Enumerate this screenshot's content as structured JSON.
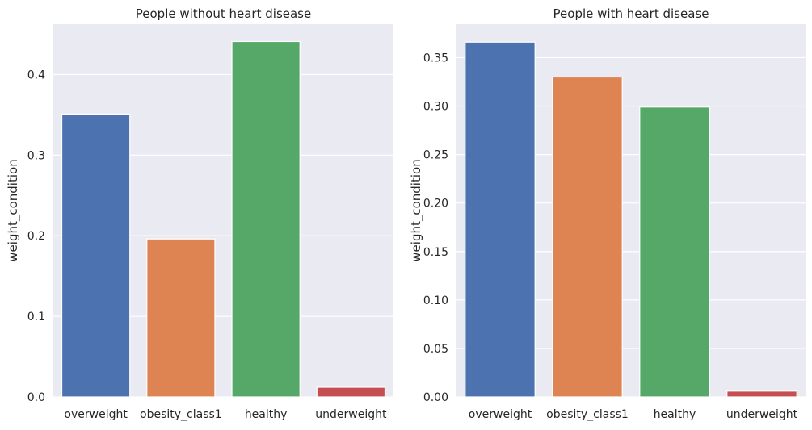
{
  "chart_data": [
    {
      "type": "bar",
      "title": "People without heart disease",
      "xlabel": "",
      "ylabel": "weight_condition",
      "categories": [
        "overweight",
        "obesity_class1",
        "healthy",
        "underweight"
      ],
      "values": [
        0.351,
        0.196,
        0.441,
        0.012
      ],
      "colors": [
        "#4c72b0",
        "#dd8452",
        "#55a868",
        "#c44e52"
      ],
      "ylim": [
        0,
        0.4625
      ],
      "yticks": [
        0.0,
        0.1,
        0.2,
        0.3,
        0.4
      ],
      "ytick_labels": [
        "0.0",
        "0.1",
        "0.2",
        "0.3",
        "0.4"
      ],
      "grid": true,
      "background": "#eaeaf2"
    },
    {
      "type": "bar",
      "title": "People with heart disease",
      "xlabel": "",
      "ylabel": "weight_condition",
      "categories": [
        "overweight",
        "obesity_class1",
        "healthy",
        "underweight"
      ],
      "values": [
        0.366,
        0.33,
        0.299,
        0.006
      ],
      "colors": [
        "#4c72b0",
        "#dd8452",
        "#55a868",
        "#c44e52"
      ],
      "ylim": [
        0,
        0.3845
      ],
      "yticks": [
        0.0,
        0.05,
        0.1,
        0.15,
        0.2,
        0.25,
        0.3,
        0.35
      ],
      "ytick_labels": [
        "0.00",
        "0.05",
        "0.10",
        "0.15",
        "0.20",
        "0.25",
        "0.30",
        "0.35"
      ],
      "grid": true,
      "background": "#eaeaf2"
    }
  ]
}
